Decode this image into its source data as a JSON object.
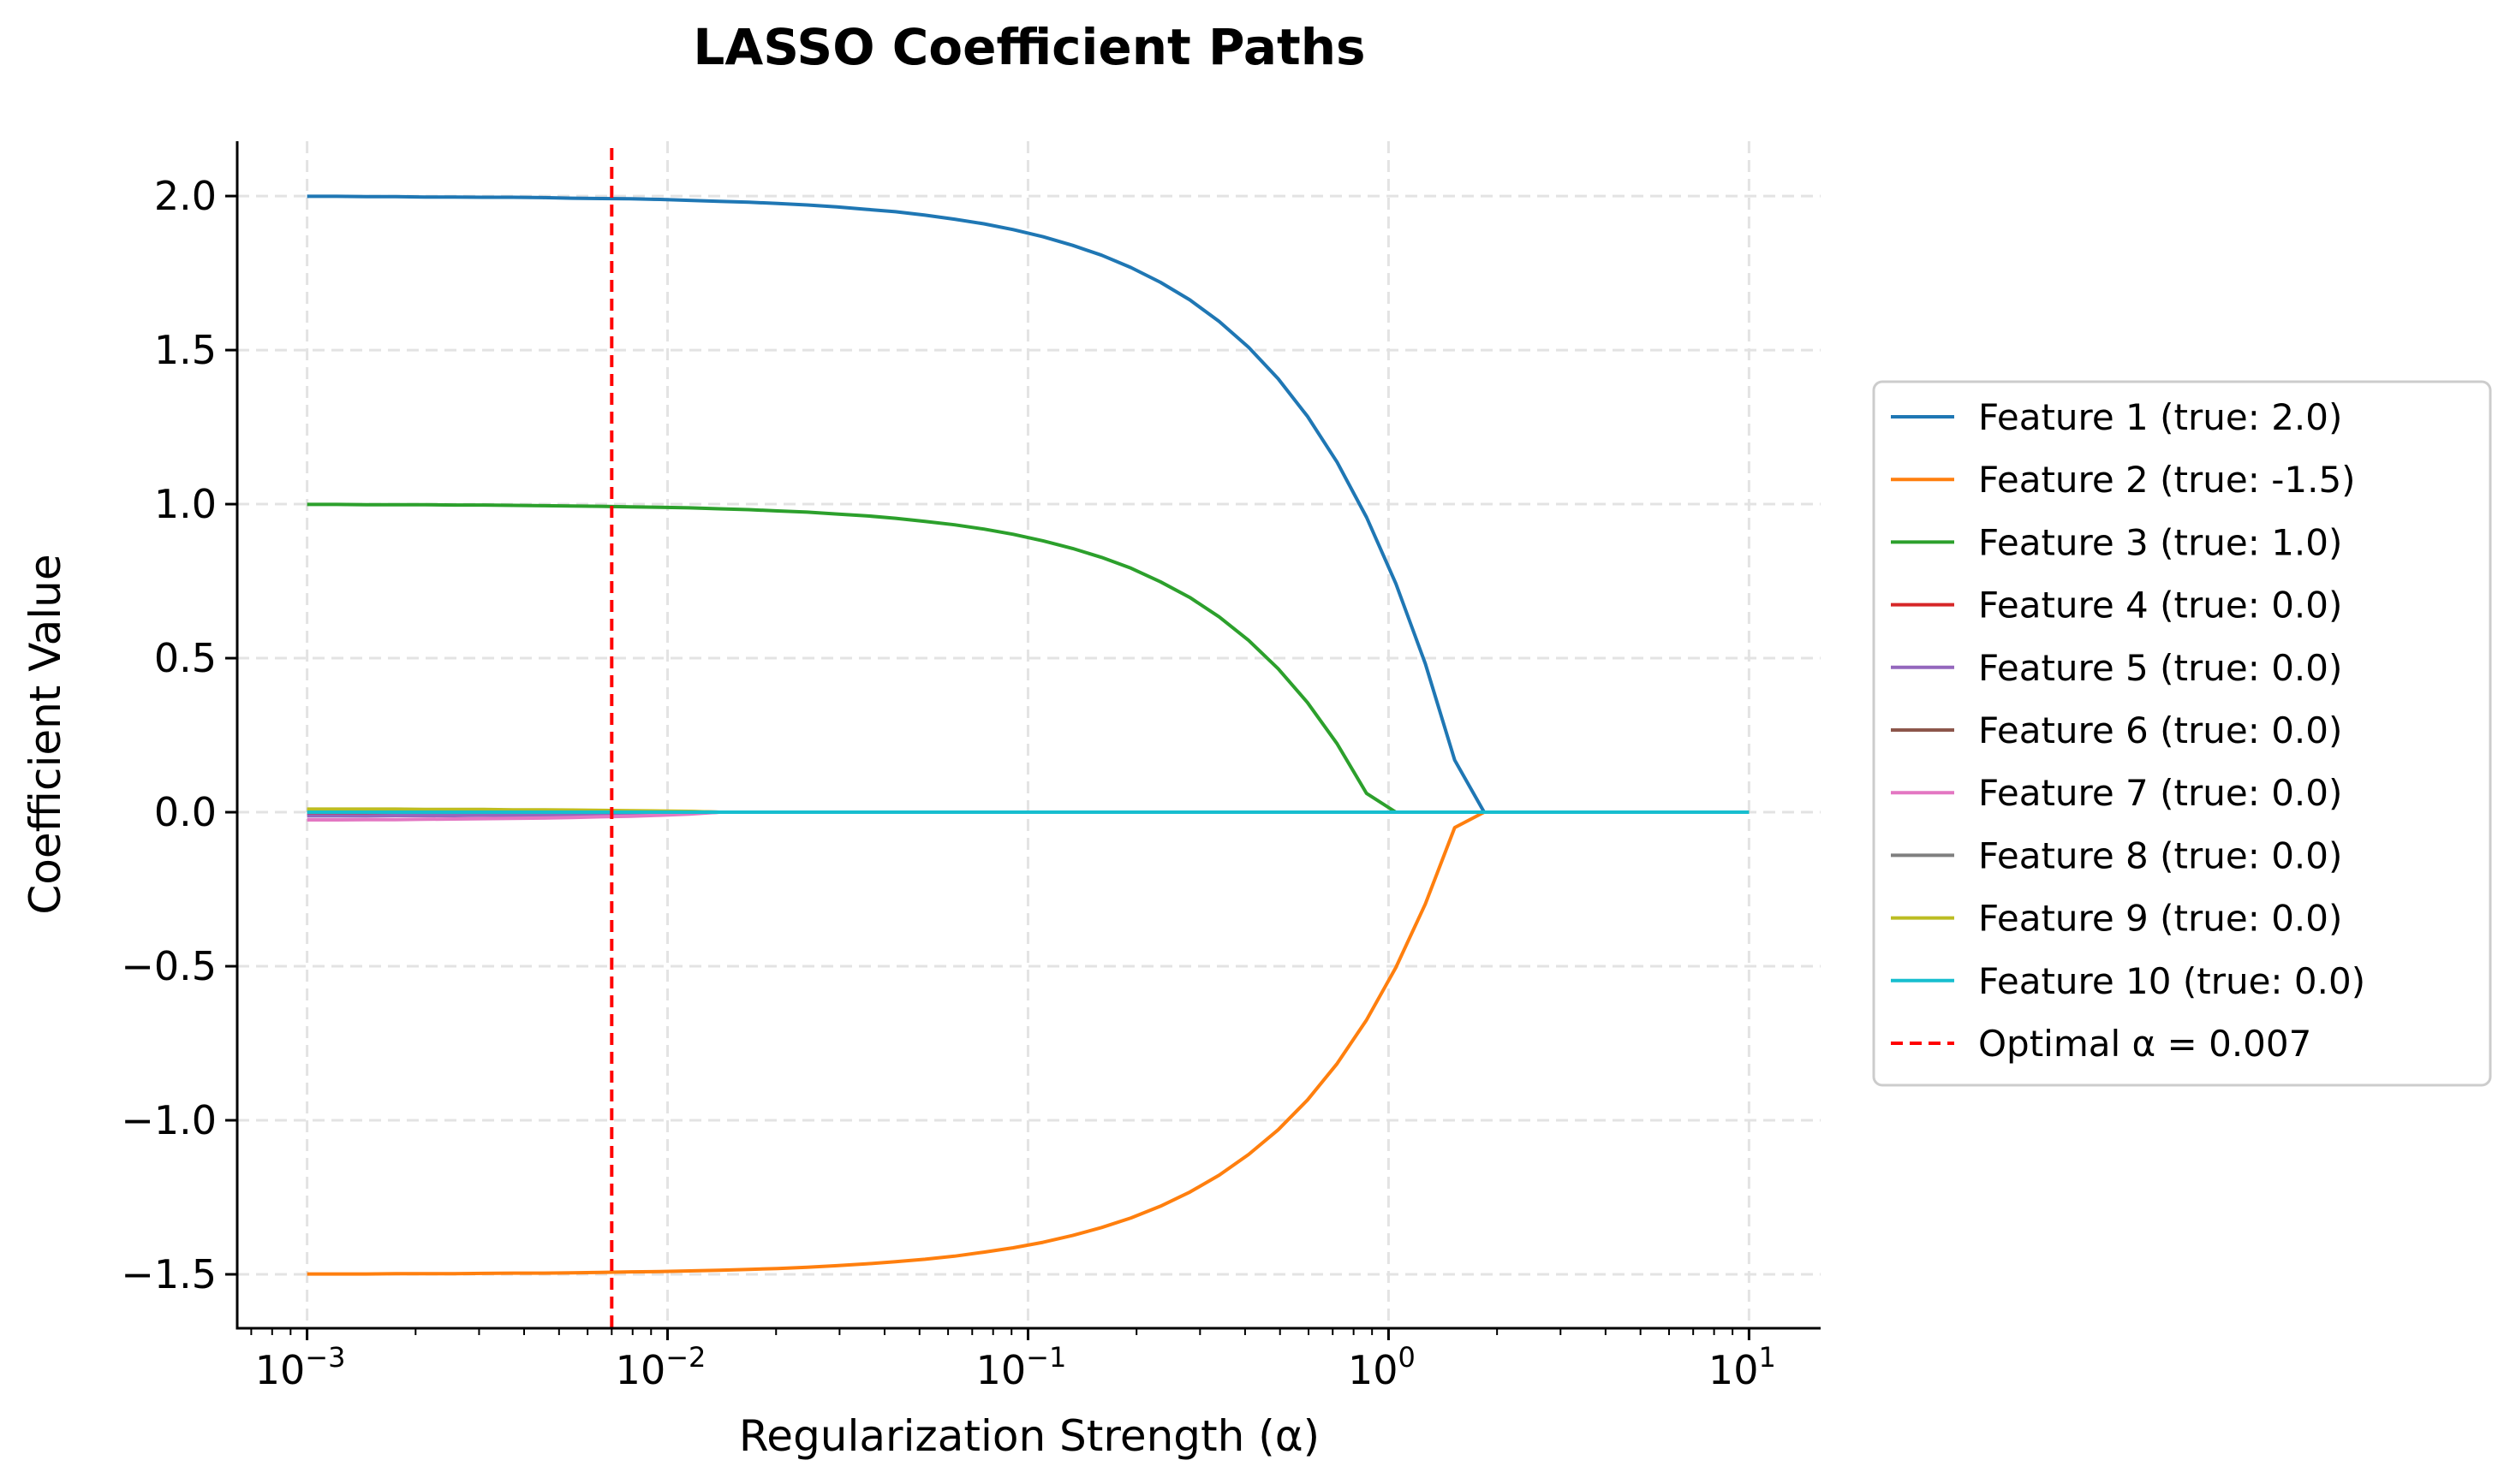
{
  "chart_data": {
    "type": "line",
    "title": "LASSO Coefficient Paths",
    "xlabel": "Regularization Strength (α)",
    "ylabel": "Coefficient Value",
    "xscale": "log",
    "xlim": [
      0.00064,
      15.8
    ],
    "ylim": [
      -1.675,
      2.178
    ],
    "grid": true,
    "legend_placement": "outside-right",
    "x_ticks": [
      0.001,
      0.01,
      0.1,
      1,
      10
    ],
    "x_tick_labels": [
      "10",
      "10",
      "10",
      "10",
      "10"
    ],
    "x_tick_exponents": [
      "−3",
      "−2",
      "−1",
      "0",
      "1"
    ],
    "y_ticks": [
      2.0,
      1.5,
      1.0,
      0.5,
      0.0,
      -0.5,
      -1.0,
      -1.5
    ],
    "y_tick_labels": [
      "2.0",
      "1.5",
      "1.0",
      "0.5",
      "0.0",
      "−0.5",
      "−1.0",
      "−1.5"
    ],
    "x": [
      0.001,
      0.00121,
      0.00146,
      0.00176,
      0.00212,
      0.00256,
      0.00309,
      0.00373,
      0.0045,
      0.00543,
      0.00655,
      0.00791,
      0.00954,
      0.0115,
      0.0139,
      0.0168,
      0.0202,
      0.0244,
      0.0295,
      0.0356,
      0.0429,
      0.0518,
      0.0625,
      0.0754,
      0.091,
      0.11,
      0.133,
      0.16,
      0.193,
      0.233,
      0.281,
      0.339,
      0.409,
      0.494,
      0.596,
      0.72,
      0.869,
      1.048,
      1.265,
      1.526,
      1.842,
      2.223,
      2.683,
      3.237,
      3.907,
      4.715,
      5.69,
      6.866,
      8.286,
      10.0
    ],
    "series": [
      {
        "name": "Feature 1 (true: 2.0)",
        "color": "#1f77b4",
        "values": [
          1.999,
          1.999,
          1.998,
          1.998,
          1.997,
          1.997,
          1.996,
          1.996,
          1.995,
          1.993,
          1.992,
          1.991,
          1.989,
          1.986,
          1.983,
          1.98,
          1.976,
          1.971,
          1.965,
          1.957,
          1.949,
          1.938,
          1.925,
          1.91,
          1.891,
          1.868,
          1.84,
          1.808,
          1.768,
          1.72,
          1.663,
          1.593,
          1.509,
          1.407,
          1.285,
          1.136,
          0.957,
          0.742,
          0.482,
          0.169,
          0,
          0,
          0,
          0,
          0,
          0,
          0,
          0,
          0,
          0
        ]
      },
      {
        "name": "Feature 2 (true: -1.5)",
        "color": "#ff7f0e",
        "values": [
          -1.499,
          -1.499,
          -1.499,
          -1.498,
          -1.498,
          -1.498,
          -1.497,
          -1.496,
          -1.496,
          -1.495,
          -1.494,
          -1.492,
          -1.491,
          -1.489,
          -1.487,
          -1.484,
          -1.481,
          -1.477,
          -1.472,
          -1.466,
          -1.459,
          -1.451,
          -1.441,
          -1.428,
          -1.414,
          -1.396,
          -1.374,
          -1.348,
          -1.317,
          -1.279,
          -1.233,
          -1.178,
          -1.111,
          -1.031,
          -0.934,
          -0.816,
          -0.674,
          -0.504,
          -0.298,
          -0.05,
          0,
          0,
          0,
          0,
          0,
          0,
          0,
          0,
          0,
          0
        ]
      },
      {
        "name": "Feature 3 (true: 1.0)",
        "color": "#2ca02c",
        "values": [
          0.999,
          0.999,
          0.998,
          0.998,
          0.998,
          0.997,
          0.997,
          0.996,
          0.995,
          0.994,
          0.993,
          0.991,
          0.99,
          0.988,
          0.985,
          0.982,
          0.978,
          0.974,
          0.968,
          0.962,
          0.954,
          0.944,
          0.933,
          0.919,
          0.902,
          0.881,
          0.856,
          0.827,
          0.792,
          0.748,
          0.697,
          0.634,
          0.558,
          0.466,
          0.356,
          0.222,
          0.061,
          0,
          0,
          0,
          0,
          0,
          0,
          0,
          0,
          0,
          0,
          0,
          0,
          0
        ]
      },
      {
        "name": "Feature 4 (true: 0.0)",
        "color": "#d62728",
        "values": [
          -0.005,
          -0.005,
          -0.005,
          -0.004,
          -0.004,
          -0.004,
          -0.004,
          -0.004,
          -0.004,
          -0.003,
          -0.003,
          -0.002,
          -0.002,
          -0.001,
          0,
          0,
          0,
          0,
          0,
          0,
          0,
          0,
          0,
          0,
          0,
          0,
          0,
          0,
          0,
          0,
          0,
          0,
          0,
          0,
          0,
          0,
          0,
          0,
          0,
          0,
          0,
          0,
          0,
          0,
          0,
          0,
          0,
          0,
          0,
          0
        ]
      },
      {
        "name": "Feature 5 (true: 0.0)",
        "color": "#9467bd",
        "values": [
          -0.012,
          -0.012,
          -0.012,
          -0.011,
          -0.011,
          -0.011,
          -0.01,
          -0.01,
          -0.009,
          -0.008,
          -0.007,
          -0.006,
          -0.005,
          -0.003,
          0,
          0,
          0,
          0,
          0,
          0,
          0,
          0,
          0,
          0,
          0,
          0,
          0,
          0,
          0,
          0,
          0,
          0,
          0,
          0,
          0,
          0,
          0,
          0,
          0,
          0,
          0,
          0,
          0,
          0,
          0,
          0,
          0,
          0,
          0,
          0
        ]
      },
      {
        "name": "Feature 6 (true: 0.0)",
        "color": "#8c564b",
        "values": [
          0.007,
          0.007,
          0.007,
          0.007,
          0.007,
          0.007,
          0.006,
          0.006,
          0.006,
          0.005,
          0.005,
          0.004,
          0.003,
          0.002,
          0,
          0,
          0,
          0,
          0,
          0,
          0,
          0,
          0,
          0,
          0,
          0,
          0,
          0,
          0,
          0,
          0,
          0,
          0,
          0,
          0,
          0,
          0,
          0,
          0,
          0,
          0,
          0,
          0,
          0,
          0,
          0,
          0,
          0,
          0,
          0
        ]
      },
      {
        "name": "Feature 7 (true: 0.0)",
        "color": "#e377c2",
        "values": [
          -0.025,
          -0.025,
          -0.024,
          -0.024,
          -0.023,
          -0.022,
          -0.021,
          -0.02,
          -0.019,
          -0.017,
          -0.015,
          -0.013,
          -0.01,
          -0.006,
          0,
          0,
          0,
          0,
          0,
          0,
          0,
          0,
          0,
          0,
          0,
          0,
          0,
          0,
          0,
          0,
          0,
          0,
          0,
          0,
          0,
          0,
          0,
          0,
          0,
          0,
          0,
          0,
          0,
          0,
          0,
          0,
          0,
          0,
          0,
          0
        ]
      },
      {
        "name": "Feature 8 (true: 0.0)",
        "color": "#7f7f7f",
        "values": [
          0.005,
          0.005,
          0.005,
          0.004,
          0.004,
          0.004,
          0.004,
          0.004,
          0.004,
          0.003,
          0.003,
          0.002,
          0.002,
          0.001,
          0,
          0,
          0,
          0,
          0,
          0,
          0,
          0,
          0,
          0,
          0,
          0,
          0,
          0,
          0,
          0,
          0,
          0,
          0,
          0,
          0,
          0,
          0,
          0,
          0,
          0,
          0,
          0,
          0,
          0,
          0,
          0,
          0,
          0,
          0,
          0
        ]
      },
      {
        "name": "Feature 9 (true: 0.0)",
        "color": "#bcbd22",
        "values": [
          0.01,
          0.01,
          0.01,
          0.01,
          0.009,
          0.009,
          0.009,
          0.008,
          0.008,
          0.007,
          0.006,
          0.005,
          0.004,
          0.003,
          0,
          0,
          0,
          0,
          0,
          0,
          0,
          0,
          0,
          0,
          0,
          0,
          0,
          0,
          0,
          0,
          0,
          0,
          0,
          0,
          0,
          0,
          0,
          0,
          0,
          0,
          0,
          0,
          0,
          0,
          0,
          0,
          0,
          0,
          0,
          0
        ]
      },
      {
        "name": "Feature 10 (true: 0.0)",
        "color": "#17becf",
        "values": [
          0,
          0,
          0,
          0,
          0,
          0,
          0,
          0,
          0,
          0,
          0,
          0,
          0,
          0,
          0,
          0,
          0,
          0,
          0,
          0,
          0,
          0,
          0,
          0,
          0,
          0,
          0,
          0,
          0,
          0,
          0,
          0,
          0,
          0,
          0,
          0,
          0,
          0,
          0,
          0,
          0,
          0,
          0,
          0,
          0,
          0,
          0,
          0,
          0,
          0
        ]
      }
    ],
    "annotations": [
      {
        "type": "vline",
        "x": 0.007,
        "label": "Optimal α = 0.007",
        "color": "#ff0000",
        "style": "dashed"
      }
    ]
  }
}
